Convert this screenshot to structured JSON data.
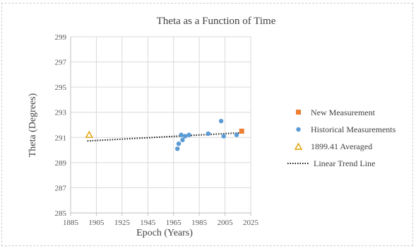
{
  "colors": {
    "new": "#ED7D31",
    "historical": "#5B9BD5",
    "averaged_stroke": "#E0A000",
    "trend": "#1a1a1a",
    "grid": "#d9d9d9",
    "text": "#595959"
  },
  "chart_data": {
    "type": "scatter",
    "title": "Theta as a Function  of Time",
    "xlabel": "Epoch (Years)",
    "ylabel": "Theta (Degrees)",
    "xlim": [
      1885,
      2025
    ],
    "ylim": [
      285,
      299
    ],
    "xticks": [
      "1885",
      "1905",
      "1925",
      "1945",
      "1965",
      "1985",
      "2005",
      "2025"
    ],
    "yticks": [
      "285",
      "287",
      "289",
      "291",
      "293",
      "295",
      "297",
      "299"
    ],
    "grid": true,
    "legend_position": "right",
    "series": [
      {
        "name": "New Measurement",
        "marker": "square",
        "points": [
          [
            2018,
            291.5
          ]
        ]
      },
      {
        "name": "Historical Measurements",
        "marker": "circle",
        "points": [
          [
            1968,
            290.1
          ],
          [
            1969,
            290.5
          ],
          [
            1971,
            291.2
          ],
          [
            1972,
            290.8
          ],
          [
            1974,
            291.1
          ],
          [
            1977,
            291.2
          ],
          [
            1992,
            291.3
          ],
          [
            2002,
            292.3
          ],
          [
            2004,
            291.1
          ],
          [
            2014,
            291.2
          ]
        ]
      },
      {
        "name": "1899.41 Averaged",
        "marker": "triangle",
        "points": [
          [
            1899.41,
            291.2
          ]
        ]
      },
      {
        "name": "Linear Trend Line",
        "marker": "dotted-line",
        "line": [
          [
            1898,
            290.72
          ],
          [
            2019,
            291.38
          ]
        ]
      }
    ]
  }
}
